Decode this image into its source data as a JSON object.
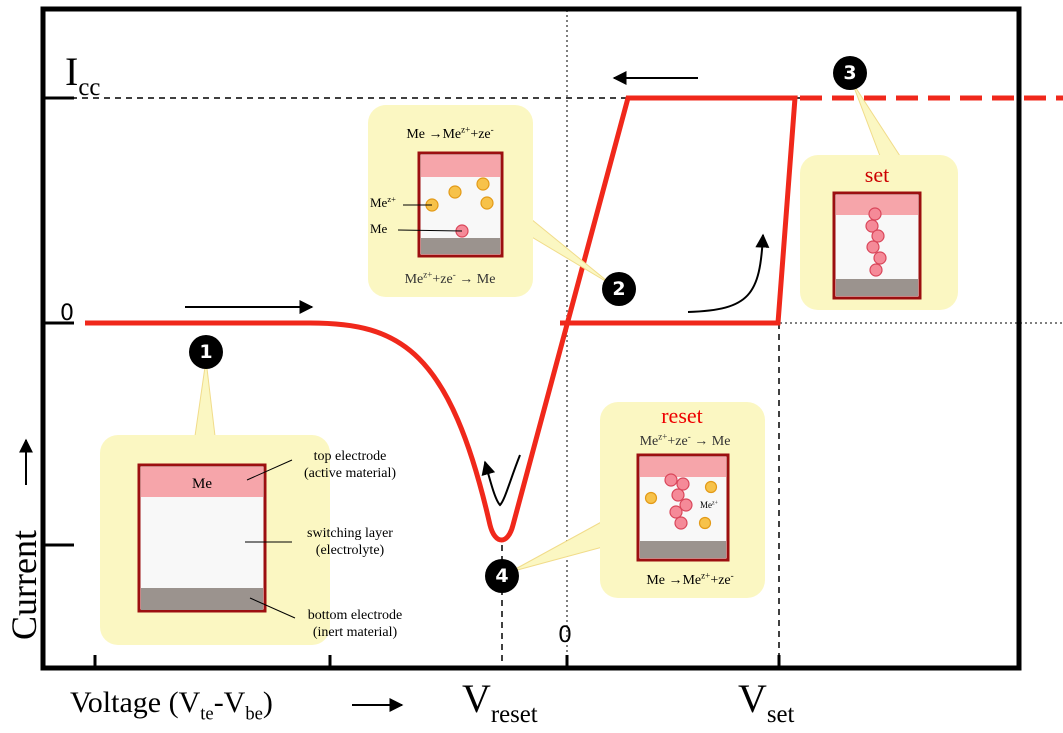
{
  "y_axis": {
    "label": "Current"
  },
  "x_axis": {
    "label": [
      "Voltage (V",
      "te",
      "-V",
      "be",
      ")"
    ]
  },
  "levels": {
    "icc": [
      "I",
      "cc"
    ],
    "zero_left": "0",
    "zero_bottom": "0",
    "v_reset": [
      "V",
      "reset"
    ],
    "v_set": [
      "V",
      "set"
    ]
  },
  "steps": [
    "1",
    "2",
    "3",
    "4"
  ],
  "step1": {
    "top_layer": "Me",
    "annotations": [
      "top electrode",
      "(active material)",
      "switching layer",
      "(electrolyte)",
      "bottom electrode",
      "(inert material)"
    ]
  },
  "step2": {
    "oxidation": [
      "Me →Me",
      "z+",
      "+ze",
      "-"
    ],
    "ion_label": [
      "Me",
      "z+"
    ],
    "atom_label": "Me",
    "reduction": [
      "Me",
      "z+",
      "+ze",
      "-",
      " → Me"
    ]
  },
  "step3": {
    "title": "set"
  },
  "step4": {
    "title": "reset",
    "reduction": [
      "Me",
      "z+",
      "+ze",
      "-",
      " → Me"
    ],
    "ion_label": [
      "Me",
      "z+"
    ],
    "oxidation": [
      "Me →Me",
      "z+",
      "+ze",
      "-"
    ]
  }
}
